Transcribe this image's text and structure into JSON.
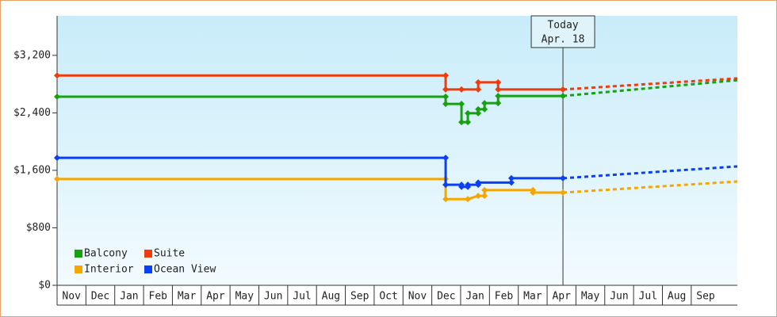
{
  "chart_data": {
    "type": "line",
    "categories": [
      "Nov",
      "Dec",
      "Jan",
      "Feb",
      "Mar",
      "Apr",
      "May",
      "Jun",
      "Jul",
      "Aug",
      "Sep",
      "Oct",
      "Nov",
      "Dec",
      "Jan",
      "Feb",
      "Mar",
      "Apr",
      "May",
      "Jun",
      "Jul",
      "Aug",
      "Sep"
    ],
    "xlim": [
      0,
      23.6
    ],
    "ylim": [
      0,
      3750
    ],
    "yticks": [
      {
        "value": 0,
        "label": "$0"
      },
      {
        "value": 800,
        "label": "$800"
      },
      {
        "value": 1600,
        "label": "$1,600"
      },
      {
        "value": 2400,
        "label": "$2,400"
      },
      {
        "value": 3200,
        "label": "$3,200"
      }
    ],
    "annotation": {
      "x": 17.55,
      "lines": [
        "Today",
        "Apr. 18"
      ]
    },
    "legend": "bottom-left",
    "series": [
      {
        "name": "Balcony",
        "color": "#17a10f",
        "x": [
          0,
          13.48,
          13.48,
          14.03,
          14.03,
          14.25,
          14.25,
          14.61,
          14.61,
          14.83,
          14.83,
          15.3,
          15.3,
          17.55
        ],
        "values": [
          2625,
          2625,
          2525,
          2525,
          2270,
          2270,
          2395,
          2395,
          2450,
          2450,
          2535,
          2535,
          2635,
          2635
        ],
        "forecast_end": {
          "x": 23.6,
          "value": 2855
        }
      },
      {
        "name": "Suite",
        "color": "#f03c0c",
        "x": [
          0,
          13.48,
          13.48,
          14.03,
          14.61,
          14.61,
          15.3,
          15.3,
          17.55
        ],
        "values": [
          2920,
          2920,
          2725,
          2725,
          2725,
          2825,
          2825,
          2725,
          2725
        ],
        "forecast_end": {
          "x": 23.6,
          "value": 2880
        }
      },
      {
        "name": "Interior",
        "color": "#f7a600",
        "x": [
          0,
          13.48,
          13.48,
          14.25,
          14.61,
          14.83,
          14.83,
          16.51,
          16.51,
          17.55
        ],
        "values": [
          1480,
          1480,
          1200,
          1200,
          1245,
          1245,
          1325,
          1325,
          1290,
          1290
        ],
        "forecast_end": {
          "x": 23.6,
          "value": 1445
        }
      },
      {
        "name": "Ocean View",
        "color": "#0a3ff2",
        "x": [
          0,
          13.48,
          13.48,
          14.03,
          14.03,
          14.25,
          14.25,
          14.61,
          14.61,
          15.76,
          15.76,
          17.55
        ],
        "values": [
          1775,
          1775,
          1400,
          1400,
          1370,
          1370,
          1400,
          1400,
          1430,
          1430,
          1490,
          1490
        ],
        "forecast_end": {
          "x": 23.6,
          "value": 1655
        }
      }
    ]
  }
}
